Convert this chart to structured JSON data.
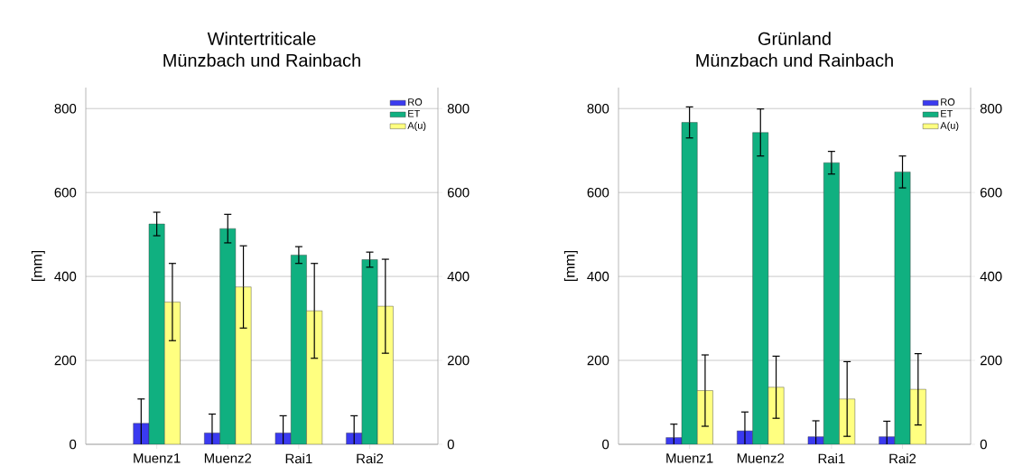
{
  "chart_data": [
    {
      "type": "bar",
      "title": "Wintertriticale",
      "subtitle": "Münzbach und Rainbach",
      "ylabel": "[mm]",
      "categories": [
        "Muenz1",
        "Muenz2",
        "Rai1",
        "Rai2"
      ],
      "series": [
        {
          "name": "RO",
          "color": "#3a3af0",
          "values": [
            50,
            27,
            27,
            27
          ],
          "errors": [
            58,
            45,
            41,
            41
          ]
        },
        {
          "name": "ET",
          "color": "#10b080",
          "values": [
            525,
            514,
            451,
            440
          ],
          "errors": [
            28,
            34,
            20,
            18
          ]
        },
        {
          "name": "A(u)",
          "color": "#ffff80",
          "values": [
            339,
            375,
            318,
            329
          ],
          "errors": [
            92,
            98,
            113,
            112
          ]
        }
      ],
      "ylim": [
        0,
        850
      ],
      "yticks": [
        0,
        200,
        400,
        600,
        800
      ],
      "y2lim": [
        0,
        850
      ],
      "y2ticks": [
        0,
        200,
        400,
        600,
        800
      ],
      "grid": "y",
      "legend": "top right"
    },
    {
      "type": "bar",
      "title": "Grünland",
      "subtitle": "Münzbach und Rainbach",
      "ylabel": "[mm]",
      "categories": [
        "Muenz1",
        "Muenz2",
        "Rai1",
        "Rai2"
      ],
      "series": [
        {
          "name": "RO",
          "color": "#3a3af0",
          "values": [
            16,
            32,
            18,
            18
          ],
          "errors": [
            32,
            45,
            38,
            37
          ]
        },
        {
          "name": "ET",
          "color": "#10b080",
          "values": [
            767,
            743,
            671,
            649
          ],
          "errors": [
            37,
            56,
            27,
            38
          ]
        },
        {
          "name": "A(u)",
          "color": "#ffff80",
          "values": [
            128,
            136,
            108,
            131
          ],
          "errors": [
            85,
            74,
            89,
            85
          ]
        }
      ],
      "ylim": [
        0,
        850
      ],
      "yticks": [
        0,
        200,
        400,
        600,
        800
      ],
      "y2lim": [
        0,
        850
      ],
      "y2ticks": [
        0,
        200,
        400,
        600,
        800
      ],
      "grid": "y",
      "legend": "top right"
    }
  ]
}
